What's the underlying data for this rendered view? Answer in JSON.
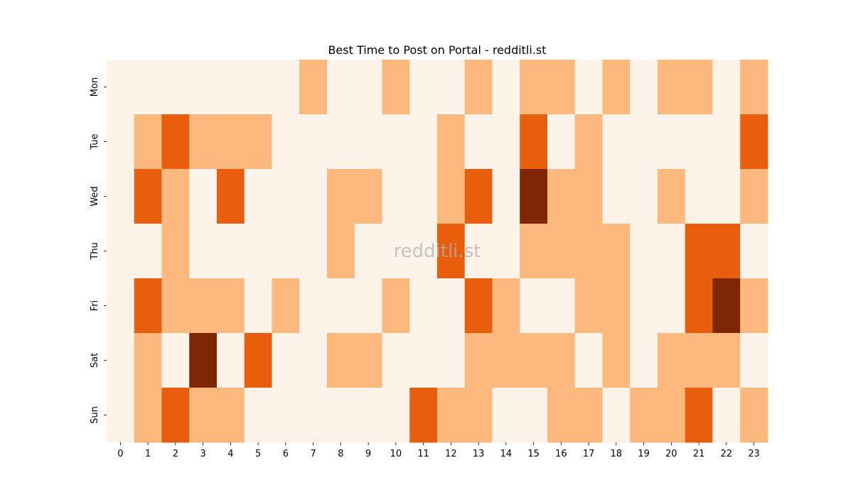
{
  "chart_data": {
    "type": "heatmap",
    "title": "Best Time to Post on Portal - redditli.st",
    "watermark": "redditli.st",
    "x": [
      "0",
      "1",
      "2",
      "3",
      "4",
      "5",
      "6",
      "7",
      "8",
      "9",
      "10",
      "11",
      "12",
      "13",
      "14",
      "15",
      "16",
      "17",
      "18",
      "19",
      "20",
      "21",
      "22",
      "23"
    ],
    "y": [
      "Mon",
      "Tue",
      "Wed",
      "Thu",
      "Fri",
      "Sat",
      "Sun"
    ],
    "values": [
      [
        0,
        0,
        0,
        0,
        0,
        0,
        0,
        1,
        0,
        0,
        1,
        0,
        0,
        1,
        0,
        1,
        1,
        0,
        1,
        0,
        1,
        1,
        0,
        1
      ],
      [
        0,
        1,
        2,
        1,
        1,
        1,
        0,
        0,
        0,
        0,
        0,
        0,
        1,
        0,
        0,
        2,
        0,
        1,
        0,
        0,
        0,
        0,
        0,
        2
      ],
      [
        0,
        2,
        1,
        0,
        2,
        0,
        0,
        0,
        1,
        1,
        0,
        0,
        1,
        2,
        0,
        3,
        1,
        1,
        0,
        0,
        1,
        0,
        0,
        1
      ],
      [
        0,
        0,
        1,
        0,
        0,
        0,
        0,
        0,
        1,
        0,
        0,
        0,
        2,
        0,
        0,
        1,
        1,
        1,
        1,
        0,
        0,
        2,
        2,
        0
      ],
      [
        0,
        2,
        1,
        1,
        1,
        0,
        1,
        0,
        0,
        0,
        1,
        0,
        0,
        2,
        1,
        0,
        0,
        1,
        1,
        0,
        0,
        2,
        3,
        1
      ],
      [
        0,
        1,
        0,
        3,
        0,
        2,
        0,
        0,
        1,
        1,
        0,
        0,
        0,
        1,
        1,
        1,
        1,
        0,
        1,
        0,
        1,
        1,
        1,
        0
      ],
      [
        0,
        1,
        2,
        1,
        1,
        0,
        0,
        0,
        0,
        0,
        0,
        2,
        1,
        1,
        0,
        0,
        1,
        1,
        0,
        1,
        1,
        2,
        0,
        1
      ]
    ],
    "colormap": [
      "#fef3e8",
      "#fdb87d",
      "#e95e0d",
      "#7f2704"
    ],
    "colorbar": false,
    "grid": false
  }
}
